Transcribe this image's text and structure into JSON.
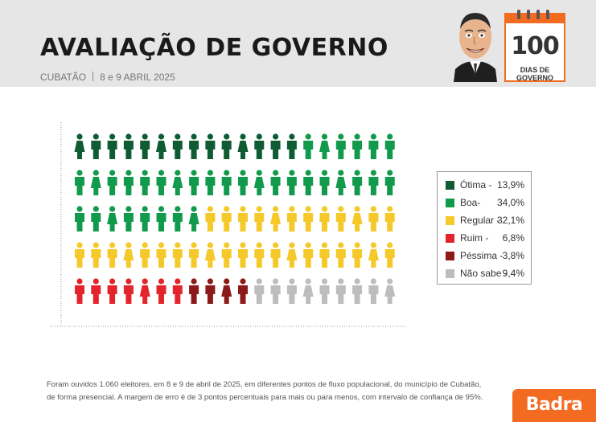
{
  "header": {
    "title": "AVALIAÇÃO DE GOVERNO",
    "location": "CUBATÃO",
    "dates": "8 e 9 ABRIL 2025"
  },
  "badge": {
    "number": "100",
    "label": "DIAS DE GOVERNO"
  },
  "colors": {
    "otima": "#0f5c33",
    "boa": "#129a4c",
    "regular": "#f5c92a",
    "ruim": "#e3242b",
    "pessima": "#8c1a1a",
    "nao_sabe": "#bdbdbd",
    "brand": "#f26b21"
  },
  "chart_data": {
    "type": "pictogram",
    "title": "AVALIAÇÃO DE GOVERNO",
    "rows": 5,
    "cols": 20,
    "total_icons": 100,
    "categories": [
      {
        "key": "otima",
        "label": "Ótima -",
        "value": 13.9,
        "display": "13,9%",
        "icons": 14
      },
      {
        "key": "boa",
        "label": "Boa-",
        "value": 34.0,
        "display": "34,0%",
        "icons": 34
      },
      {
        "key": "regular",
        "label": "Regular -",
        "value": 32.1,
        "display": "32,1%",
        "icons": 32
      },
      {
        "key": "ruim",
        "label": "Ruim -",
        "value": 6.8,
        "display": "6,8%",
        "icons": 7
      },
      {
        "key": "pessima",
        "label": "Péssima -",
        "value": 3.8,
        "display": "3,8%",
        "icons": 4
      },
      {
        "key": "nao_sabe",
        "label": "Não sabe -",
        "value": 9.4,
        "display": "9,4%",
        "icons": 9
      }
    ],
    "legend_position": "right"
  },
  "footnote": {
    "line1": "Foram ouvidos 1.060 eleitores, em 8 e 9 de abril de 2025, em diferentes pontos de fluxo populacional, do município de Cubatão,",
    "line2": "de forma presencial. A margem de erro é de 3 pontos percentuais para mais ou para menos, com intervalo de confiança de 95%."
  },
  "brand": {
    "logo_text": "Badra"
  }
}
